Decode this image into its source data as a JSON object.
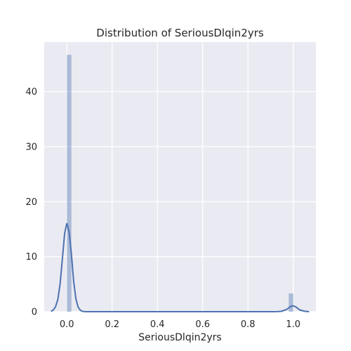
{
  "chart_data": {
    "type": "histogram",
    "title": "Distribution of SeriousDlqin2yrs",
    "xlabel": "SeriousDlqin2yrs",
    "ylabel": "",
    "xlim": [
      -0.1,
      1.1
    ],
    "ylim": [
      0,
      49
    ],
    "x_ticks": [
      "0.0",
      "0.2",
      "0.4",
      "0.6",
      "0.8",
      "1.0"
    ],
    "y_ticks": [
      "0",
      "10",
      "20",
      "30",
      "40"
    ],
    "grid": true,
    "legend": "none",
    "histogram": {
      "bins": [
        {
          "x0": 0.0,
          "x1": 0.02,
          "density": 46.7
        },
        {
          "x0": 0.98,
          "x1": 1.0,
          "density": 3.3
        }
      ]
    },
    "kde": {
      "x": [
        -0.07,
        -0.06,
        -0.05,
        -0.04,
        -0.03,
        -0.02,
        -0.01,
        0.0,
        0.01,
        0.02,
        0.03,
        0.04,
        0.05,
        0.06,
        0.07,
        0.08,
        0.1,
        0.3,
        0.5,
        0.7,
        0.9,
        0.93,
        0.95,
        0.97,
        0.98,
        0.99,
        1.0,
        1.01,
        1.02,
        1.03,
        1.05,
        1.07
      ],
      "y": [
        0.05,
        0.3,
        0.9,
        2.2,
        5.0,
        9.5,
        14.2,
        16.1,
        14.5,
        10.5,
        5.5,
        2.3,
        0.8,
        0.25,
        0.05,
        0.01,
        0.0,
        0.0,
        0.0,
        0.0,
        0.0,
        0.02,
        0.1,
        0.4,
        0.7,
        1.0,
        1.05,
        0.9,
        0.6,
        0.3,
        0.08,
        0.0
      ]
    },
    "colors": {
      "background": "#eaeaf2",
      "grid": "#ffffff",
      "bar": "#4c72b0",
      "line": "#4c72b0"
    }
  }
}
